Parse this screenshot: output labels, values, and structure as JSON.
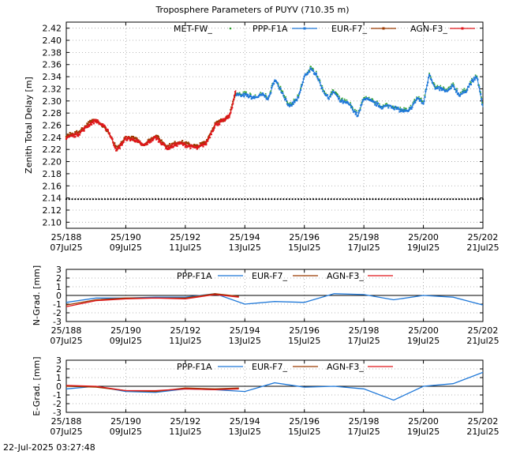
{
  "title": "Troposphere Parameters of PUYV (710.35 m)",
  "timestamp": "22-Jul-2025 03:27:48",
  "x_ticks": [
    {
      "doy": 188,
      "top": "25/188",
      "bottom": "07Jul25"
    },
    {
      "doy": 190,
      "top": "25/190",
      "bottom": "09Jul25"
    },
    {
      "doy": 192,
      "top": "25/192",
      "bottom": "11Jul25"
    },
    {
      "doy": 194,
      "top": "25/194",
      "bottom": "13Jul25"
    },
    {
      "doy": 196,
      "top": "25/196",
      "bottom": "15Jul25"
    },
    {
      "doy": 198,
      "top": "25/198",
      "bottom": "17Jul25"
    },
    {
      "doy": 200,
      "top": "25/200",
      "bottom": "19Jul25"
    },
    {
      "doy": 202,
      "top": "25/202",
      "bottom": "21Jul25"
    }
  ],
  "colors": {
    "met": "#2ca02c",
    "ppp": "#1f78d8",
    "eur": "#9b3a00",
    "agn": "#e0161b",
    "black": "#000000"
  },
  "chart_data": [
    {
      "type": "line",
      "name": "ztd",
      "ylabel": "Zenith Total Delay [m]",
      "xlim": [
        188,
        202
      ],
      "ylim": [
        2.09,
        2.43
      ],
      "ytick_values": [
        2.1,
        2.12,
        2.14,
        2.16,
        2.18,
        2.2,
        2.22,
        2.24,
        2.26,
        2.28,
        2.3,
        2.32,
        2.34,
        2.36,
        2.38,
        2.4,
        2.42
      ],
      "grid": true,
      "legend_position": "top",
      "legend": [
        "MET-FW_",
        "PPP-F1A",
        "EUR-F7_",
        "AGN-F3_"
      ],
      "series": [
        {
          "name": "MET-FW_",
          "x": [
            188.0,
            202.0
          ],
          "y": [
            2.138,
            2.138
          ]
        },
        {
          "name": "PPP-F1A",
          "x": [
            193.7,
            193.9,
            194.0,
            194.3,
            194.6,
            194.8,
            195.0,
            195.2,
            195.5,
            195.8,
            196.0,
            196.2,
            196.4,
            196.6,
            196.8,
            197.0,
            197.2,
            197.5,
            197.8,
            198.0,
            198.3,
            198.6,
            198.9,
            199.2,
            199.5,
            199.8,
            200.0,
            200.2,
            200.4,
            200.6,
            200.8,
            201.0,
            201.2,
            201.4,
            201.6,
            201.8,
            202.0
          ],
          "y": [
            2.312,
            2.308,
            2.31,
            2.305,
            2.31,
            2.304,
            2.335,
            2.32,
            2.29,
            2.305,
            2.34,
            2.352,
            2.345,
            2.32,
            2.305,
            2.315,
            2.3,
            2.295,
            2.275,
            2.305,
            2.298,
            2.29,
            2.292,
            2.285,
            2.282,
            2.305,
            2.295,
            2.345,
            2.32,
            2.32,
            2.315,
            2.325,
            2.31,
            2.315,
            2.33,
            2.34,
            2.29
          ]
        },
        {
          "name": "EUR-F7_",
          "x": [
            188.0,
            188.4,
            188.8,
            189.0,
            189.4,
            189.7,
            190.0,
            190.3,
            190.6,
            191.0,
            191.4,
            191.8,
            192.0,
            192.4,
            192.7,
            193.0,
            193.3,
            193.5,
            193.7
          ],
          "y": [
            2.243,
            2.248,
            2.265,
            2.27,
            2.25,
            2.22,
            2.24,
            2.238,
            2.228,
            2.243,
            2.225,
            2.233,
            2.23,
            2.225,
            2.233,
            2.262,
            2.27,
            2.278,
            2.315
          ]
        },
        {
          "name": "AGN-F3_",
          "x": [
            188.0,
            188.4,
            188.8,
            189.0,
            189.4,
            189.7,
            190.0,
            190.3,
            190.6,
            191.0,
            191.4,
            191.8,
            192.0,
            192.4,
            192.7,
            193.0,
            193.3,
            193.5,
            193.7
          ],
          "y": [
            2.24,
            2.245,
            2.262,
            2.268,
            2.252,
            2.218,
            2.238,
            2.236,
            2.226,
            2.24,
            2.222,
            2.23,
            2.227,
            2.222,
            2.23,
            2.26,
            2.268,
            2.276,
            2.318
          ]
        }
      ]
    },
    {
      "type": "line",
      "name": "ngrad",
      "ylabel": "N-Grad. [mm]",
      "xlim": [
        188,
        202
      ],
      "ylim": [
        -3,
        3
      ],
      "ytick_values": [
        -3,
        -2,
        -1,
        0,
        1,
        2,
        3
      ],
      "grid": true,
      "legend_position": "top",
      "legend": [
        "PPP-F1A",
        "EUR-F7_",
        "AGN-F3_"
      ],
      "series": [
        {
          "name": "PPP-F1A",
          "x": [
            188,
            189,
            190,
            191,
            192,
            193,
            194,
            195,
            196,
            197,
            198,
            199,
            200,
            201,
            202
          ],
          "y": [
            -0.8,
            -0.3,
            -0.3,
            -0.2,
            -0.2,
            0.2,
            -1.0,
            -0.7,
            -0.8,
            0.2,
            0.1,
            -0.5,
            0.0,
            -0.2,
            -1.1
          ]
        },
        {
          "name": "EUR-F7_",
          "x": [
            188,
            189,
            190,
            191,
            192,
            193,
            193.8
          ],
          "y": [
            -1.1,
            -0.5,
            -0.3,
            -0.3,
            -0.3,
            0.2,
            -0.1
          ]
        },
        {
          "name": "AGN-F3_",
          "x": [
            188,
            189,
            190,
            191,
            192,
            193,
            193.8
          ],
          "y": [
            -1.3,
            -0.6,
            -0.4,
            -0.3,
            -0.4,
            0.1,
            -0.2
          ]
        }
      ]
    },
    {
      "type": "line",
      "name": "egrad",
      "ylabel": "E-Grad. [mm]",
      "xlim": [
        188,
        202
      ],
      "ylim": [
        -3,
        3
      ],
      "ytick_values": [
        -3,
        -2,
        -1,
        0,
        1,
        2,
        3
      ],
      "grid": true,
      "legend_position": "top",
      "legend": [
        "PPP-F1A",
        "EUR-F7_",
        "AGN-F3_"
      ],
      "series": [
        {
          "name": "PPP-F1A",
          "x": [
            188,
            189,
            190,
            191,
            192,
            193,
            194,
            195,
            196,
            197,
            198,
            199,
            200,
            201,
            202
          ],
          "y": [
            -0.3,
            0.0,
            -0.6,
            -0.7,
            -0.3,
            -0.4,
            -0.6,
            0.4,
            -0.1,
            0.0,
            -0.3,
            -1.6,
            0.0,
            0.3,
            1.6
          ]
        },
        {
          "name": "EUR-F7_",
          "x": [
            188,
            189,
            190,
            191,
            192,
            193,
            193.8
          ],
          "y": [
            0.0,
            -0.1,
            -0.5,
            -0.6,
            -0.2,
            -0.3,
            -0.2
          ]
        },
        {
          "name": "AGN-F3_",
          "x": [
            188,
            189,
            190,
            191,
            192,
            193,
            193.8
          ],
          "y": [
            0.1,
            0.0,
            -0.5,
            -0.5,
            -0.3,
            -0.4,
            -0.3
          ]
        }
      ]
    }
  ]
}
